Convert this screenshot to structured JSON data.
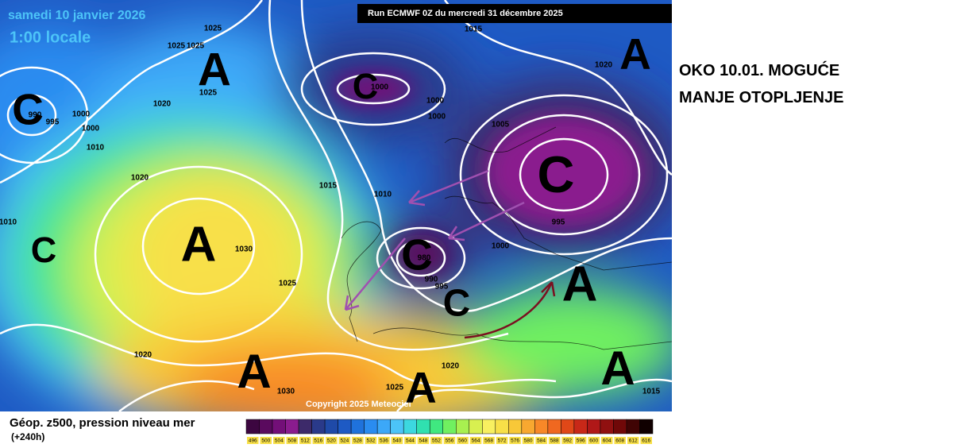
{
  "header": {
    "date": "samedi 10 janvier 2026",
    "time": "1:00 locale",
    "run": "Run ECMWF 0Z du mercredi 31 décembre 2025",
    "copyright": "Copyright 2025 Meteociel"
  },
  "annotation": {
    "line1": "OKO 10.01. MOGUĆE",
    "line2": "MANJE OTOPLJENJE"
  },
  "legend": {
    "title": "Géop. z500, pression niveau mer",
    "lead": "(+240h)",
    "levels": [
      496,
      500,
      504,
      508,
      512,
      516,
      520,
      524,
      528,
      532,
      536,
      540,
      544,
      548,
      552,
      556,
      560,
      564,
      568,
      572,
      576,
      580,
      584,
      588,
      592,
      596,
      600,
      604,
      608,
      612,
      616
    ],
    "colors": [
      "#3c0640",
      "#5a0a5e",
      "#730f78",
      "#8a1c8e",
      "#3d2a6a",
      "#2a3a8a",
      "#1f4aa8",
      "#1e5ac4",
      "#1f72dc",
      "#2a8cf0",
      "#3ca8f8",
      "#4cc4f8",
      "#3cd8e0",
      "#30e0b0",
      "#40e880",
      "#70f060",
      "#a8f050",
      "#d8f050",
      "#f8f060",
      "#f8e048",
      "#f8c838",
      "#f8a830",
      "#f88828",
      "#f06820",
      "#e04818",
      "#c82818",
      "#b01818",
      "#901010",
      "#700808",
      "#400404",
      "#100000"
    ]
  },
  "isobar_labels": [
    1015,
    1025,
    1025,
    1025,
    1020,
    1000,
    1025,
    1000,
    1000,
    1020,
    990,
    995,
    1000,
    1005,
    1000,
    1010,
    1020,
    1015,
    1010,
    995,
    1010,
    1030,
    1000,
    980,
    990,
    995,
    1025,
    1020,
    1020,
    1030,
    1025,
    1015
  ],
  "centers": [
    "A",
    "C",
    "C",
    "A",
    "C",
    "A",
    "C",
    "C",
    "C",
    "A",
    "A",
    "A",
    "A"
  ]
}
